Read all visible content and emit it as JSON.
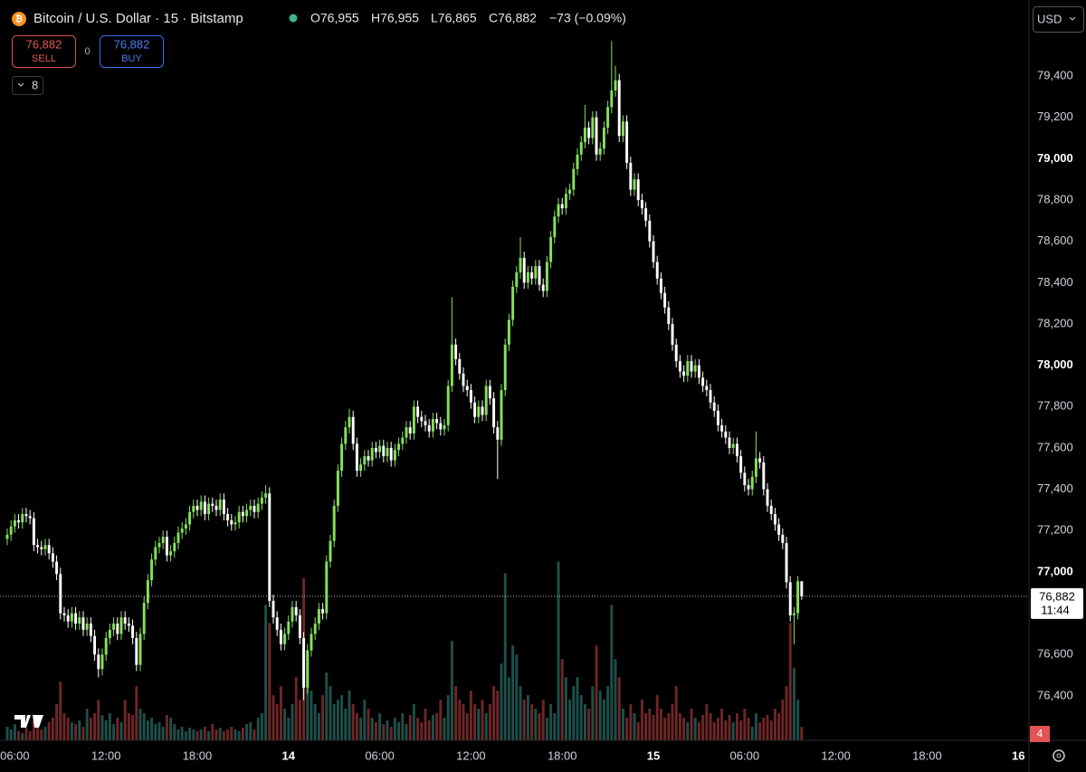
{
  "chart_data": {
    "type": "candlestick",
    "symbol": "Bitcoin / U.S. Dollar · 15 · Bitstamp",
    "ohlc_labels": [
      "O76,955",
      "H76,955",
      "L76,865",
      "C76,882"
    ],
    "change": "−73 (−0.09%)",
    "sell_price": "76,882",
    "sell_label": "SELL",
    "spread": "0",
    "buy_price": "76,882",
    "buy_label": "BUY",
    "indicators_count": "8",
    "currency": "USD",
    "last_price_label": "76,882",
    "countdown": "11:44",
    "alert_count": "4",
    "up_color": "#86e05b",
    "down_color": "#ffffff",
    "up_volume_color": "#1f4f4a",
    "down_volume_color": "#6e2626",
    "grid": false,
    "xlim": [
      -1.9,
      268.8
    ],
    "xticks": [
      {
        "value": 2,
        "label": "06:00"
      },
      {
        "value": 26,
        "label": "12:00"
      },
      {
        "value": 50,
        "label": "18:00"
      },
      {
        "value": 74,
        "label": "14"
      },
      {
        "value": 98,
        "label": "06:00"
      },
      {
        "value": 122,
        "label": "12:00"
      },
      {
        "value": 146,
        "label": "18:00"
      },
      {
        "value": 170,
        "label": "15"
      },
      {
        "value": 194,
        "label": "06:00"
      },
      {
        "value": 218,
        "label": "12:00"
      },
      {
        "value": 242,
        "label": "18:00"
      },
      {
        "value": 266,
        "label": "16"
      }
    ],
    "ylim": [
      76185,
      79768
    ],
    "yticks": [
      {
        "value": 76400,
        "label": "76,400"
      },
      {
        "value": 76600,
        "label": "76,600"
      },
      {
        "value": 76800,
        "label": "76,800"
      },
      {
        "value": 77000,
        "label": "77,000"
      },
      {
        "value": 77200,
        "label": "77,200"
      },
      {
        "value": 77400,
        "label": "77,400"
      },
      {
        "value": 77600,
        "label": "77,600"
      },
      {
        "value": 77800,
        "label": "77,800"
      },
      {
        "value": 78000,
        "label": "78,000"
      },
      {
        "value": 78200,
        "label": "78,200"
      },
      {
        "value": 78400,
        "label": "78,400"
      },
      {
        "value": 78600,
        "label": "78,600"
      },
      {
        "value": 78800,
        "label": "78,800"
      },
      {
        "value": 79000,
        "label": "79,000"
      },
      {
        "value": 79200,
        "label": "79,200"
      },
      {
        "value": 79400,
        "label": "79,400"
      }
    ],
    "vlim": [
      0,
      820
    ],
    "open": [
      77160,
      77180,
      77220,
      77250,
      77240,
      77280,
      77270,
      77260,
      77130,
      77120,
      77110,
      77130,
      77090,
      77050,
      76990,
      76800,
      76790,
      76760,
      76800,
      76750,
      76780,
      76720,
      76750,
      76690,
      76600,
      76530,
      76600,
      76680,
      76720,
      76750,
      76700,
      76780,
      76750,
      76740,
      76680,
      76550,
      76700,
      76850,
      76960,
      77060,
      77120,
      77140,
      77170,
      77080,
      77100,
      77140,
      77190,
      77210,
      77230,
      77290,
      77320,
      77300,
      77340,
      77280,
      77330,
      77320,
      77300,
      77350,
      77280,
      77250,
      77230,
      77240,
      77290,
      77270,
      77300,
      77320,
      77290,
      77330,
      77360,
      77380,
      76860,
      76780,
      76720,
      76650,
      76700,
      76760,
      76830,
      76790,
      76680,
      76440,
      76620,
      76700,
      76750,
      76820,
      76800,
      77050,
      77150,
      77320,
      77490,
      77620,
      77700,
      77750,
      77620,
      77490,
      77520,
      77560,
      77540,
      77600,
      77580,
      77610,
      77560,
      77600,
      77540,
      77590,
      77620,
      77650,
      77700,
      77670,
      77800,
      77750,
      77730,
      77710,
      77680,
      77740,
      77720,
      77690,
      77710,
      77900,
      78100,
      78030,
      77960,
      77900,
      77880,
      77820,
      77750,
      77800,
      77760,
      77900,
      77840,
      77700,
      77640,
      77880,
      78100,
      78220,
      78380,
      78450,
      78520,
      78400,
      78450,
      78420,
      78480,
      78390,
      78360,
      78500,
      78620,
      78720,
      78780,
      78760,
      78830,
      78850,
      78950,
      79020,
      79080,
      79150,
      79100,
      79200,
      79020,
      79050,
      79150,
      79250,
      79330,
      79380,
      79110,
      79180,
      78980,
      78850,
      78900,
      78800,
      78760,
      78700,
      78600,
      78500,
      78420,
      78350,
      78280,
      78200,
      78100,
      78020,
      77970,
      77950,
      78020,
      77970,
      78000,
      77940,
      77900,
      77880,
      77820,
      77780,
      77710,
      77680,
      77650,
      77600,
      77620,
      77560,
      77480,
      77420,
      77400,
      77460,
      77550,
      77530,
      77400,
      77320,
      77280,
      77230,
      77180,
      77140,
      76950,
      76790,
      76800,
      76955
    ],
    "high": [
      77210,
      77250,
      77280,
      77280,
      77310,
      77310,
      77300,
      77290,
      77160,
      77150,
      77160,
      77160,
      77120,
      77080,
      77020,
      76830,
      76820,
      76830,
      76830,
      76810,
      76810,
      76780,
      76780,
      76720,
      76630,
      76630,
      76710,
      76750,
      76780,
      76780,
      76810,
      76810,
      76780,
      76770,
      76710,
      76730,
      76880,
      76990,
      77090,
      77150,
      77170,
      77200,
      77200,
      77130,
      77170,
      77220,
      77240,
      77260,
      77320,
      77350,
      77350,
      77370,
      77370,
      77360,
      77360,
      77350,
      77380,
      77380,
      77310,
      77280,
      77270,
      77320,
      77320,
      77330,
      77350,
      77350,
      77360,
      77390,
      77420,
      77410,
      76890,
      76810,
      76750,
      76730,
      76790,
      76860,
      76860,
      76820,
      76710,
      76650,
      76730,
      76780,
      76850,
      76850,
      77080,
      77180,
      77350,
      77520,
      77650,
      77730,
      77790,
      77780,
      77650,
      77550,
      77590,
      77590,
      77630,
      77630,
      77640,
      77640,
      77630,
      77630,
      77620,
      77650,
      77680,
      77730,
      77730,
      77830,
      77830,
      77780,
      77760,
      77740,
      77770,
      77770,
      77750,
      77740,
      77930,
      78330,
      78130,
      78060,
      77990,
      77930,
      77910,
      77850,
      77830,
      77830,
      77930,
      77930,
      77870,
      77730,
      77910,
      78130,
      78250,
      78410,
      78480,
      78620,
      78550,
      78480,
      78480,
      78510,
      78510,
      78420,
      78530,
      78650,
      78750,
      78810,
      78810,
      78860,
      78880,
      78980,
      79050,
      79110,
      79260,
      79180,
      79230,
      79230,
      79080,
      79180,
      79280,
      79570,
      79450,
      79410,
      79210,
      79210,
      79010,
      78930,
      78930,
      78830,
      78790,
      78730,
      78630,
      78530,
      78450,
      78380,
      78310,
      78230,
      78130,
      78050,
      78000,
      78050,
      78050,
      78030,
      78030,
      77970,
      77930,
      77910,
      77850,
      77810,
      77740,
      77710,
      77680,
      77650,
      77650,
      77590,
      77510,
      77450,
      77490,
      77680,
      77580,
      77560,
      77430,
      77350,
      77310,
      77260,
      77210,
      77170,
      76980,
      76830,
      76980,
      76955
    ],
    "low": [
      77130,
      77150,
      77190,
      77210,
      77210,
      77240,
      77230,
      77100,
      77090,
      77080,
      77080,
      77060,
      77020,
      76960,
      76770,
      76760,
      76730,
      76730,
      76720,
      76720,
      76690,
      76690,
      76660,
      76570,
      76490,
      76500,
      76570,
      76650,
      76690,
      76670,
      76670,
      76720,
      76710,
      76650,
      76520,
      76520,
      76670,
      76820,
      76930,
      77030,
      77090,
      77110,
      77050,
      77050,
      77070,
      77110,
      77160,
      77180,
      77200,
      77260,
      77270,
      77270,
      77250,
      77250,
      77290,
      77270,
      77270,
      77250,
      77220,
      77200,
      77200,
      77210,
      77240,
      77240,
      77270,
      77260,
      77260,
      77300,
      77330,
      76830,
      76750,
      76690,
      76620,
      76620,
      76670,
      76730,
      76760,
      76650,
      76380,
      76410,
      76590,
      76670,
      76720,
      76770,
      76770,
      77020,
      77120,
      77290,
      77460,
      77590,
      77670,
      77590,
      77460,
      77460,
      77490,
      77510,
      77510,
      77550,
      77550,
      77530,
      77530,
      77510,
      77510,
      77560,
      77590,
      77620,
      77640,
      77640,
      77720,
      77700,
      77680,
      77650,
      77650,
      77690,
      77660,
      77660,
      77680,
      77870,
      78000,
      77930,
      77870,
      77850,
      77790,
      77720,
      77720,
      77730,
      77730,
      77810,
      77670,
      77450,
      77610,
      77850,
      78070,
      78190,
      78350,
      78420,
      78370,
      78370,
      78390,
      78390,
      78360,
      78330,
      78330,
      78470,
      78590,
      78690,
      78730,
      78730,
      78800,
      78820,
      78920,
      78990,
      79050,
      79070,
      79070,
      78990,
      78990,
      79020,
      79120,
      79220,
      79300,
      79080,
      79080,
      78950,
      78820,
      78820,
      78770,
      78730,
      78670,
      78570,
      78470,
      78390,
      78320,
      78250,
      78170,
      78070,
      77990,
      77940,
      77920,
      77920,
      77940,
      77940,
      77910,
      77870,
      77850,
      77790,
      77750,
      77680,
      77650,
      77620,
      77570,
      77570,
      77530,
      77450,
      77390,
      77370,
      77370,
      77430,
      77500,
      77370,
      77290,
      77250,
      77200,
      77150,
      77110,
      76920,
      76760,
      76650,
      76770,
      76865
    ],
    "close": [
      77180,
      77220,
      77250,
      77240,
      77280,
      77270,
      77260,
      77130,
      77120,
      77110,
      77130,
      77090,
      77050,
      76990,
      76800,
      76790,
      76760,
      76800,
      76750,
      76780,
      76720,
      76750,
      76690,
      76600,
      76530,
      76600,
      76680,
      76720,
      76750,
      76700,
      76780,
      76750,
      76740,
      76680,
      76550,
      76700,
      76850,
      76960,
      77060,
      77120,
      77140,
      77170,
      77080,
      77100,
      77140,
      77190,
      77210,
      77230,
      77290,
      77320,
      77300,
      77340,
      77280,
      77330,
      77320,
      77300,
      77350,
      77280,
      77250,
      77230,
      77240,
      77290,
      77270,
      77300,
      77320,
      77290,
      77330,
      77360,
      77380,
      76860,
      76780,
      76720,
      76650,
      76700,
      76760,
      76830,
      76790,
      76680,
      76440,
      76620,
      76700,
      76750,
      76820,
      76800,
      77050,
      77150,
      77320,
      77490,
      77620,
      77700,
      77750,
      77620,
      77490,
      77520,
      77560,
      77540,
      77600,
      77580,
      77610,
      77560,
      77600,
      77540,
      77590,
      77620,
      77650,
      77700,
      77670,
      77800,
      77750,
      77730,
      77710,
      77680,
      77740,
      77720,
      77690,
      77710,
      77900,
      78100,
      78030,
      77960,
      77900,
      77880,
      77820,
      77750,
      77800,
      77760,
      77900,
      77840,
      77700,
      77640,
      77880,
      78100,
      78220,
      78380,
      78450,
      78520,
      78400,
      78450,
      78420,
      78480,
      78390,
      78360,
      78500,
      78620,
      78720,
      78780,
      78760,
      78830,
      78850,
      78950,
      79020,
      79080,
      79150,
      79100,
      79200,
      79020,
      79050,
      79150,
      79250,
      79330,
      79380,
      79110,
      79180,
      78980,
      78850,
      78900,
      78800,
      78760,
      78700,
      78600,
      78500,
      78420,
      78350,
      78280,
      78200,
      78100,
      78020,
      77970,
      77950,
      78020,
      77970,
      78000,
      77940,
      77900,
      77880,
      77820,
      77780,
      77710,
      77680,
      77650,
      77600,
      77620,
      77560,
      77480,
      77420,
      77400,
      77460,
      77550,
      77530,
      77400,
      77320,
      77280,
      77230,
      77180,
      77140,
      76950,
      76790,
      76800,
      76955,
      76882
    ],
    "volume": [
      15,
      12,
      18,
      10,
      8,
      14,
      10,
      22,
      18,
      12,
      15,
      20,
      25,
      40,
      65,
      30,
      25,
      20,
      18,
      22,
      15,
      35,
      25,
      30,
      45,
      28,
      22,
      30,
      18,
      25,
      20,
      45,
      30,
      28,
      60,
      35,
      30,
      22,
      25,
      18,
      20,
      15,
      28,
      25,
      18,
      12,
      15,
      10,
      14,
      12,
      10,
      12,
      15,
      10,
      18,
      12,
      14,
      10,
      12,
      15,
      12,
      10,
      14,
      18,
      20,
      12,
      25,
      30,
      150,
      130,
      50,
      40,
      60,
      35,
      25,
      40,
      70,
      45,
      180,
      100,
      55,
      40,
      30,
      50,
      75,
      60,
      40,
      45,
      50,
      35,
      55,
      40,
      30,
      25,
      45,
      35,
      25,
      20,
      30,
      18,
      22,
      15,
      25,
      20,
      30,
      18,
      28,
      40,
      25,
      20,
      35,
      22,
      28,
      30,
      45,
      25,
      50,
      110,
      60,
      45,
      40,
      30,
      55,
      40,
      35,
      45,
      30,
      40,
      60,
      55,
      85,
      185,
      70,
      105,
      95,
      60,
      45,
      50,
      40,
      35,
      30,
      45,
      25,
      40,
      30,
      198,
      90,
      70,
      45,
      60,
      70,
      50,
      40,
      35,
      60,
      105,
      55,
      45,
      60,
      150,
      90,
      70,
      35,
      25,
      40,
      30,
      20,
      45,
      30,
      35,
      28,
      50,
      35,
      25,
      30,
      40,
      60,
      30,
      25,
      20,
      35,
      25,
      20,
      28,
      40,
      30,
      20,
      25,
      35,
      22,
      28,
      20,
      30,
      22,
      35,
      25,
      15,
      30,
      20,
      25,
      28,
      22,
      35,
      30,
      45,
      60,
      130,
      80,
      45,
      15
    ]
  }
}
